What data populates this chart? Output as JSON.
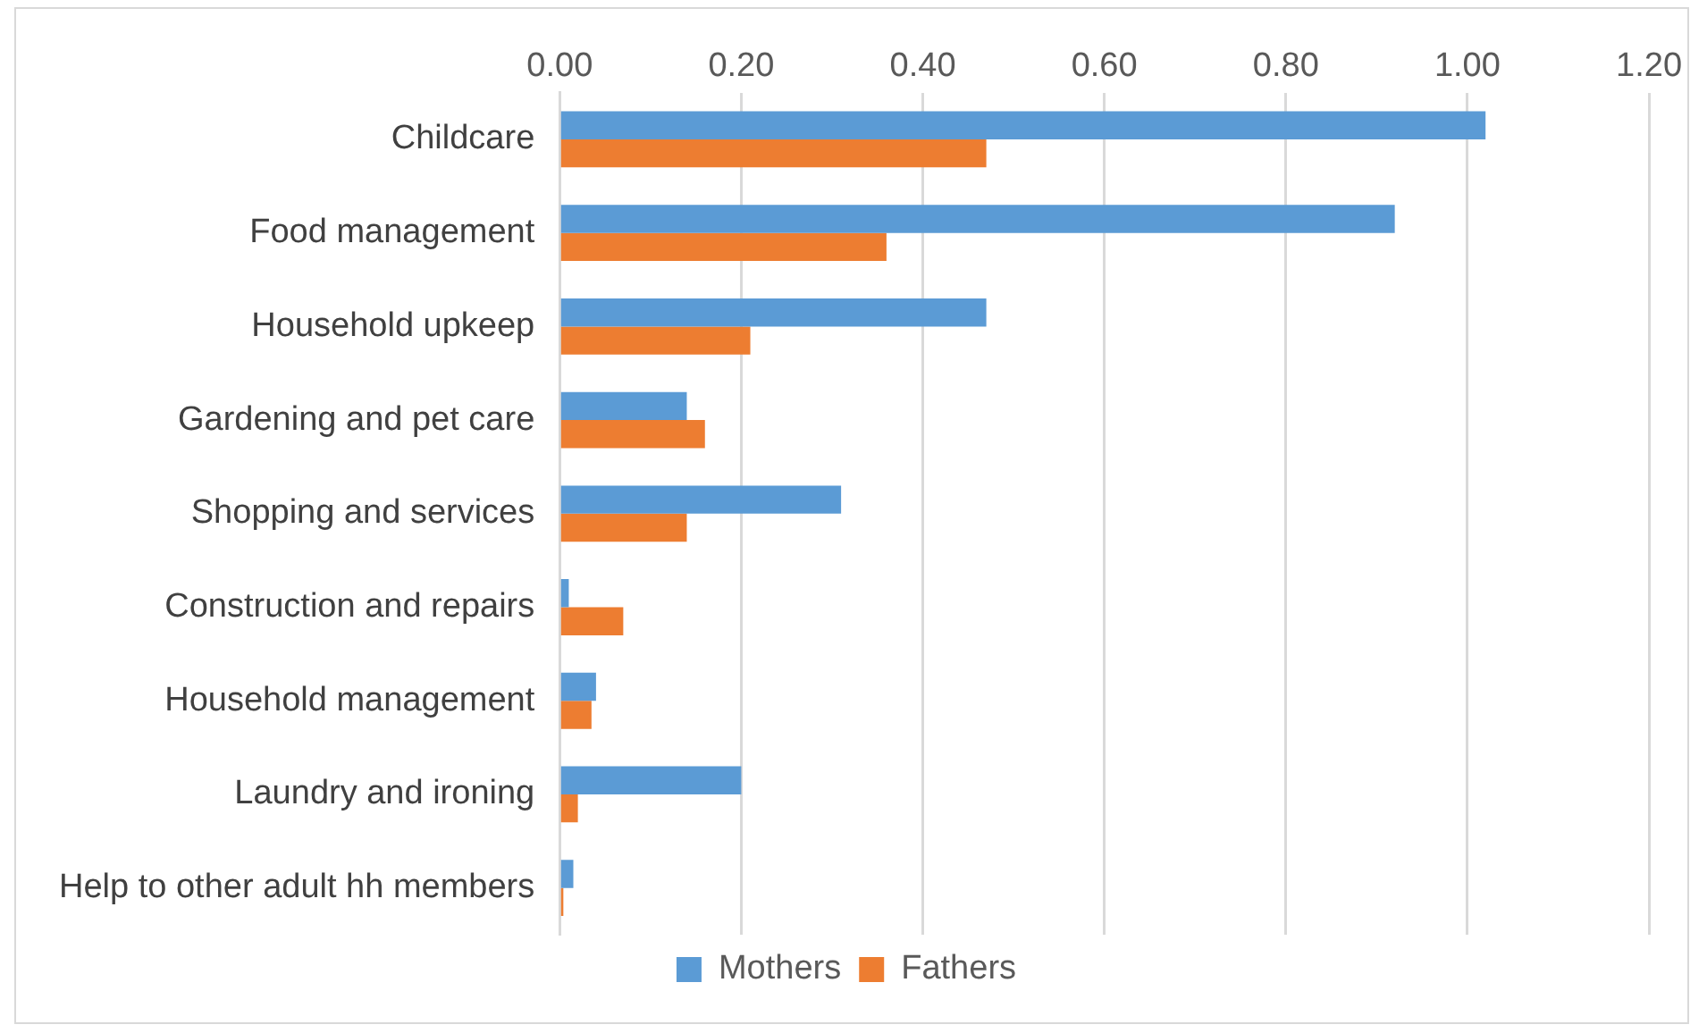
{
  "chart_data": {
    "type": "bar",
    "orientation": "horizontal",
    "categories": [
      "Childcare",
      "Food management",
      "Household upkeep",
      "Gardening and pet care",
      "Shopping and services",
      "Construction and repairs",
      "Household management",
      "Laundry and ironing",
      "Help to other adult hh members"
    ],
    "series": [
      {
        "name": "Mothers",
        "color": "#5b9bd5",
        "values": [
          1.02,
          0.92,
          0.47,
          0.14,
          0.31,
          0.01,
          0.04,
          0.2,
          0.015
        ]
      },
      {
        "name": "Fathers",
        "color": "#ed7d31",
        "values": [
          0.47,
          0.36,
          0.21,
          0.16,
          0.14,
          0.07,
          0.035,
          0.02,
          0.004
        ]
      }
    ],
    "xlim": [
      0,
      1.2
    ],
    "xticks": [
      {
        "value": 0,
        "label": "0.00"
      },
      {
        "value": 0.2,
        "label": "0.20"
      },
      {
        "value": 0.4,
        "label": "0.40"
      },
      {
        "value": 0.6,
        "label": "0.60"
      },
      {
        "value": 0.8,
        "label": "0.80"
      },
      {
        "value": 1,
        "label": "1.00"
      },
      {
        "value": 1.2,
        "label": "1.20"
      }
    ],
    "grid": "x",
    "legend": "bottom"
  }
}
